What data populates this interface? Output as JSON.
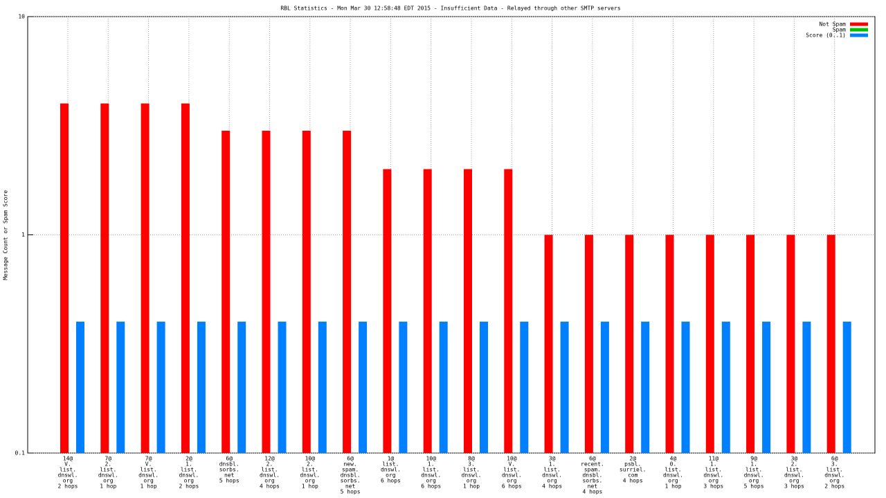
{
  "chart_data": {
    "type": "bar",
    "title": "RBL Statistics - Mon Mar 30 12:58:48 EDT 2015 - Insufficient Data - Relayed through other SMTP servers",
    "y_label": "Message Count or Spam Score",
    "y_scale": "log",
    "grid": true,
    "legend_position": "top-right",
    "ylim": [
      0.1,
      10
    ],
    "yticks": [
      0.1,
      1,
      10
    ],
    "categories": [
      [
        "14@",
        "V.",
        "list.",
        "dnswl.",
        "org",
        "2 hops"
      ],
      [
        "7@",
        "2.",
        "list.",
        "dnswl.",
        "org",
        "1 hop"
      ],
      [
        "7@",
        "V.",
        "list.",
        "dnswl.",
        "org",
        "1 hop"
      ],
      [
        "2@",
        "1.",
        "list.",
        "dnswl.",
        "org",
        "2 hops"
      ],
      [
        "6@",
        "dnsbl.",
        "sorbs.",
        "net",
        "5 hops"
      ],
      [
        "12@",
        "2.",
        "list.",
        "dnswl.",
        "org",
        "4 hops"
      ],
      [
        "10@",
        "2.",
        "list.",
        "dnswl.",
        "org",
        "1 hop"
      ],
      [
        "6@",
        "new.",
        "spam.",
        "dnsbl.",
        "sorbs.",
        "net",
        "5 hops"
      ],
      [
        "1@",
        "list.",
        "dnswl.",
        "org",
        "6 hops"
      ],
      [
        "10@",
        "1.",
        "list.",
        "dnswl.",
        "org",
        "6 hops"
      ],
      [
        "8@",
        "3.",
        "list.",
        "dnswl.",
        "org",
        "1 hop"
      ],
      [
        "10@",
        "V.",
        "list.",
        "dnswl.",
        "org",
        "6 hops"
      ],
      [
        "3@",
        "1.",
        "list.",
        "dnswl.",
        "org",
        "4 hops"
      ],
      [
        "6@",
        "recent.",
        "spam.",
        "dnsbl.",
        "sorbs.",
        "net",
        "4 hops"
      ],
      [
        "2@",
        "psbl.",
        "surriel.",
        "com",
        "4 hops"
      ],
      [
        "4@",
        "0.",
        "list.",
        "dnswl.",
        "org",
        "1 hop"
      ],
      [
        "11@",
        "1.",
        "list.",
        "dnswl.",
        "org",
        "3 hops"
      ],
      [
        "9@",
        "1.",
        "list.",
        "dnswl.",
        "org",
        "5 hops"
      ],
      [
        "3@",
        "2.",
        "list.",
        "dnswl.",
        "org",
        "3 hops"
      ],
      [
        "6@",
        "3.",
        "list.",
        "dnswl.",
        "org",
        "2 hops"
      ]
    ],
    "series": [
      {
        "name": "Not Spam",
        "color": "#ff0000",
        "values": [
          4,
          4,
          4,
          4,
          3,
          3,
          3,
          3,
          2,
          2,
          2,
          2,
          1,
          1,
          1,
          1,
          1,
          1,
          1,
          1
        ]
      },
      {
        "name": "Spam",
        "color": "#00c000",
        "values": [
          null,
          null,
          null,
          null,
          null,
          null,
          null,
          null,
          null,
          null,
          null,
          null,
          null,
          null,
          null,
          null,
          null,
          null,
          null,
          null
        ]
      },
      {
        "name": "Score (0..1)",
        "color": "#0080ff",
        "values": [
          0.4,
          0.4,
          0.4,
          0.4,
          0.4,
          0.4,
          0.4,
          0.4,
          0.4,
          0.4,
          0.4,
          0.4,
          0.4,
          0.4,
          0.4,
          0.4,
          0.4,
          0.4,
          0.4,
          0.4
        ]
      }
    ]
  }
}
